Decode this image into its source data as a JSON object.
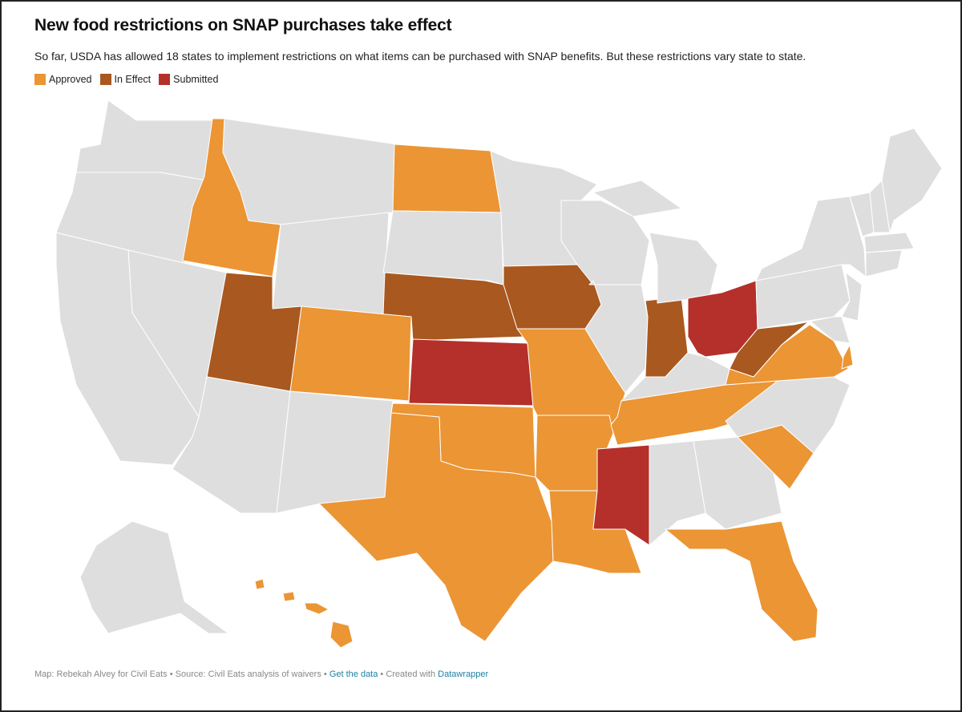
{
  "title": "New food restrictions on SNAP purchases take effect",
  "subtitle": "So far, USDA has allowed 18 states to implement restrictions on what items can be purchased with SNAP benefits. But these restrictions vary state to state.",
  "legend": [
    {
      "label": "Approved",
      "color": "#EB9535"
    },
    {
      "label": "In Effect",
      "color": "#A9581F"
    },
    {
      "label": "Submitted",
      "color": "#B5302A"
    }
  ],
  "default_color": "#DEDEDE",
  "states": {
    "Idaho": "Approved",
    "North Dakota": "Approved",
    "Colorado": "Approved",
    "Texas": "Approved",
    "Oklahoma": "Approved",
    "Missouri": "Approved",
    "Arkansas": "Approved",
    "Louisiana": "Approved",
    "Tennessee": "Approved",
    "Virginia": "Approved",
    "South Carolina": "Approved",
    "Florida": "Approved",
    "Hawaii": "Approved",
    "Utah": "In Effect",
    "Nebraska": "In Effect",
    "Iowa": "In Effect",
    "Indiana": "In Effect",
    "West Virginia": "In Effect",
    "Kansas": "Submitted",
    "Ohio": "Submitted",
    "Mississippi": "Submitted"
  },
  "footer": {
    "credit": "Map: Rebekah Alvey for Civil Eats",
    "sep": " • ",
    "source": "Source: Civil Eats analysis of waivers",
    "data_link": "Get the data",
    "created": "Created with",
    "tool_link": "Datawrapper"
  }
}
